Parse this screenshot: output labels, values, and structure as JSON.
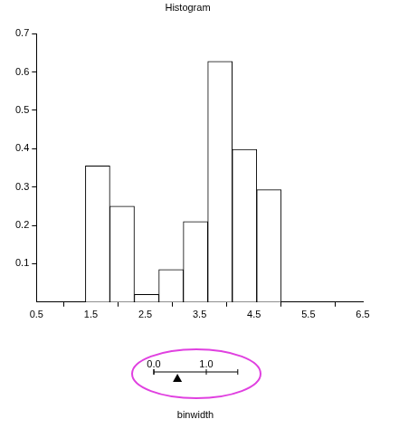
{
  "chart_data": {
    "type": "histogram",
    "title": "Histogram",
    "bins": [
      1.4,
      1.85,
      2.3,
      2.75,
      3.2,
      3.65,
      4.1,
      4.55,
      5.0
    ],
    "values": [
      0.355,
      0.25,
      0.02,
      0.085,
      0.21,
      0.628,
      0.398,
      0.293
    ],
    "color": "#ffffff",
    "xlim": [
      0.5,
      6.5
    ],
    "xticks": [
      0.5,
      1.5,
      2.5,
      3.5,
      4.5,
      5.5,
      6.5
    ],
    "ylim": [
      0,
      0.7
    ],
    "yticks": [
      0.1,
      0.2,
      0.3,
      0.4,
      0.5,
      0.6,
      0.7
    ],
    "grid": false
  },
  "slider": {
    "label": "binwidth",
    "range": [
      0,
      1.6
    ],
    "value": 0.45,
    "ticks": [
      {
        "value": 0,
        "label": "0.0"
      },
      {
        "value": 1,
        "label": "1.0"
      }
    ]
  }
}
